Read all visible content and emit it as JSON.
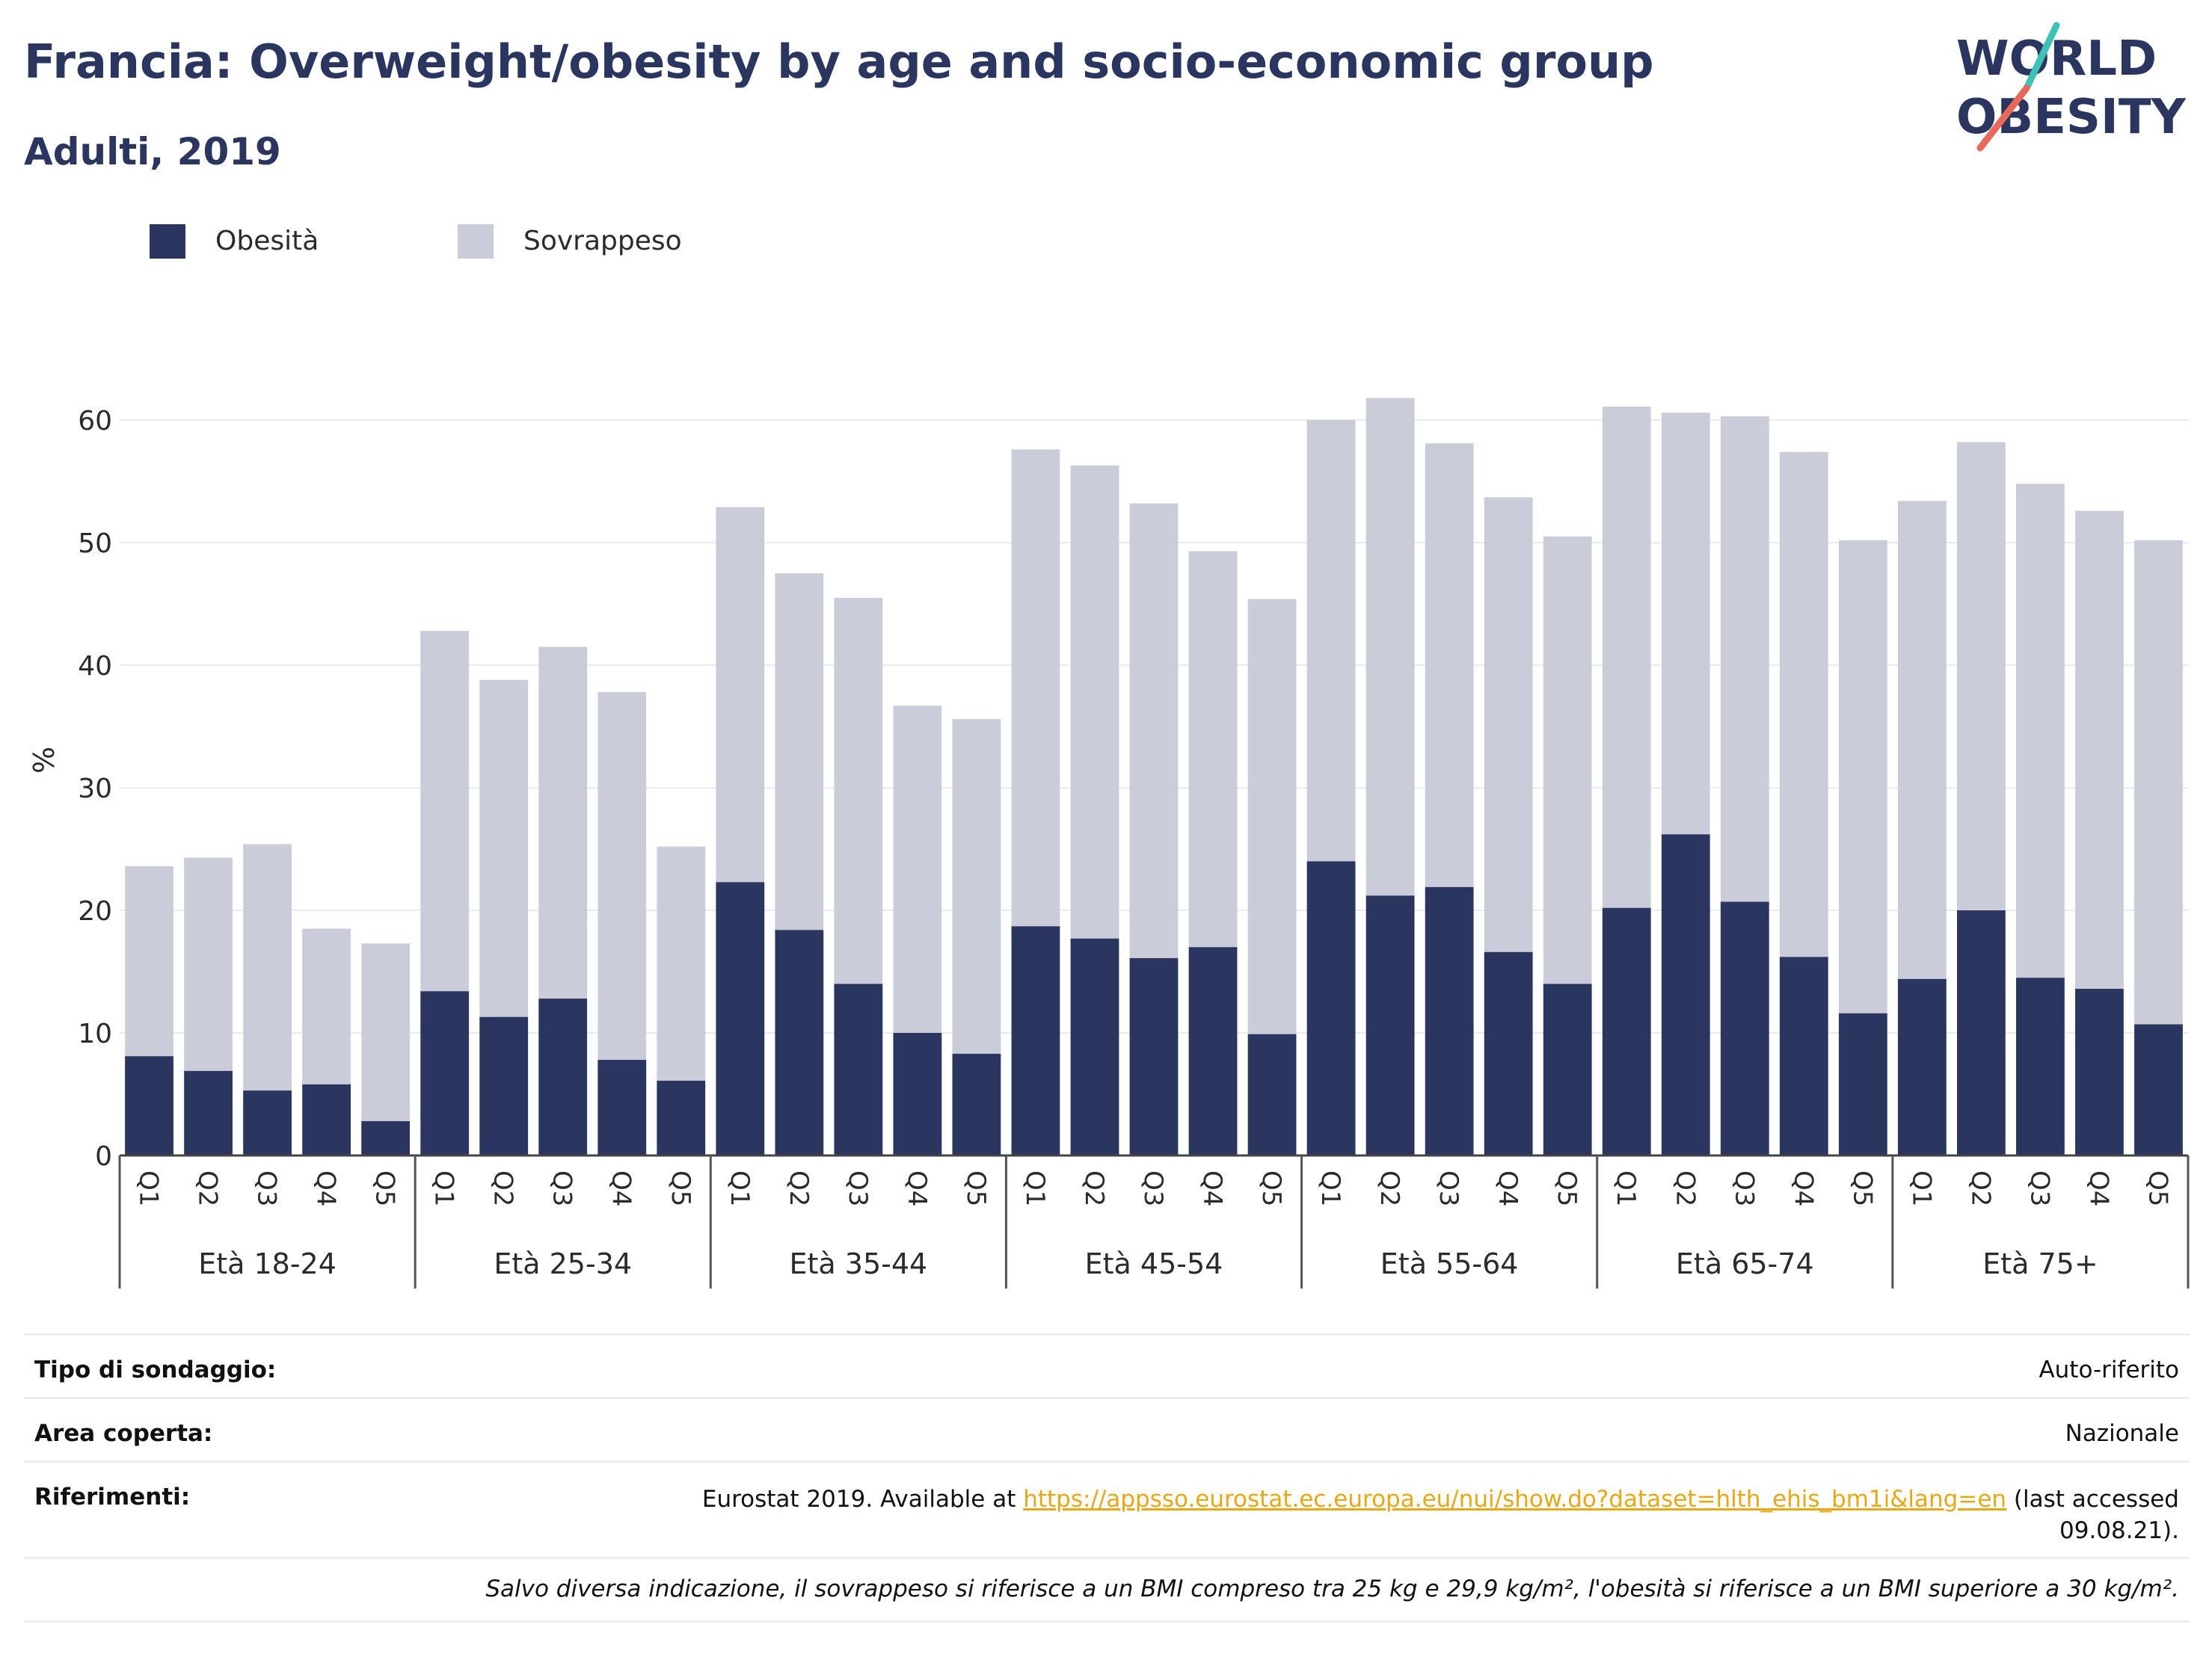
{
  "title": "Francia: Overweight/obesity by age and socio-economic group",
  "subtitle": "Adulti, 2019",
  "logo": {
    "line1": "WORLD",
    "line2": "OBESITY",
    "accent_colors": [
      "#3ec1b9",
      "#e8685a"
    ]
  },
  "colors": {
    "obesity": "#2b3660",
    "overweight": "#cacdd9",
    "title": "#2b3660",
    "grid": "#e9ebf1",
    "link": "#e6a817"
  },
  "chart_data": {
    "type": "bar",
    "stacked": true,
    "ylabel": "%",
    "ylim": [
      0,
      63
    ],
    "yticks": [
      0,
      10,
      20,
      30,
      40,
      50,
      60
    ],
    "grid": true,
    "legend_position": "top-left",
    "quintiles": [
      "Q1",
      "Q2",
      "Q3",
      "Q4",
      "Q5"
    ],
    "groups": [
      "Età 18-24",
      "Età 25-34",
      "Età 35-44",
      "Età 45-54",
      "Età 55-64",
      "Età 65-74",
      "Età 75+"
    ],
    "series": [
      {
        "name": "Obesità",
        "color": "#2b3660",
        "values": [
          8.1,
          6.9,
          5.3,
          5.8,
          2.8,
          13.4,
          11.3,
          12.8,
          7.8,
          6.1,
          22.3,
          18.4,
          14.0,
          10.0,
          8.3,
          18.7,
          17.7,
          16.1,
          17.0,
          9.9,
          24.0,
          21.2,
          21.9,
          16.6,
          14.0,
          20.2,
          26.2,
          20.7,
          16.2,
          11.6,
          14.4,
          20.0,
          14.5,
          13.6,
          10.7
        ]
      },
      {
        "name": "Sovrappeso",
        "color": "#cacdd9",
        "values": [
          15.5,
          17.4,
          20.1,
          12.7,
          14.5,
          29.4,
          27.5,
          28.7,
          30.0,
          19.1,
          30.6,
          29.1,
          31.5,
          26.7,
          27.3,
          38.9,
          38.6,
          37.1,
          32.3,
          35.5,
          36.0,
          40.6,
          36.2,
          37.1,
          36.5,
          40.9,
          34.4,
          39.6,
          41.2,
          38.6,
          39.0,
          38.2,
          40.3,
          39.0,
          39.5
        ]
      }
    ]
  },
  "info": {
    "survey_label": "Tipo di sondaggio:",
    "survey_value": "Auto-riferito",
    "area_label": "Area coperta:",
    "area_value": "Nazionale",
    "references_label": "Riferimenti:",
    "references_prefix": "Eurostat 2019. Available at ",
    "references_link": "https://appsso.eurostat.ec.europa.eu/nui/show.do?dataset=hlth_ehis_bm1i&lang=en",
    "references_suffix": " (last accessed",
    "references_date": "09.08.21).",
    "note": "Salvo diversa indicazione, il sovrappeso si riferisce a un BMI compreso tra 25 kg e 29,9 kg/m², l'obesità si riferisce a un BMI superiore a 30 kg/m²."
  }
}
